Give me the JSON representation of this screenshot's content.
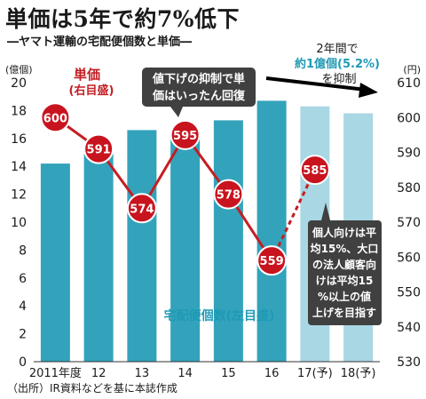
{
  "header": {
    "title": "単価は5年で約7%低下",
    "subtitle": "―ヤマト運輸の宅配便個数と単価―"
  },
  "footer": {
    "source": "（出所）IR資料などを基に本誌作成"
  },
  "colors": {
    "bar_actual": "#33a3bb",
    "bar_forecast": "#a9d7e4",
    "price_line": "#c41e24",
    "price_marker": "#c8141e",
    "callout_bg": "#404040",
    "axis_text": "#1a1a1a",
    "red_label": "#c41e24",
    "blue_label": "#1f9ab5"
  },
  "chart_data": {
    "type": "bar",
    "categories": [
      "2011年度",
      "12",
      "13",
      "14",
      "15",
      "16",
      "17(予)",
      "18(予)"
    ],
    "series": [
      {
        "name": "宅配便個数(左目盛)",
        "axis": "left",
        "values": [
          14.2,
          14.9,
          16.6,
          16.2,
          17.3,
          18.7,
          18.3,
          17.8
        ],
        "forecast": [
          false,
          false,
          false,
          false,
          false,
          false,
          true,
          true
        ]
      },
      {
        "name": "単価(右目盛)",
        "axis": "right",
        "values": [
          600,
          591,
          574,
          595,
          578,
          559,
          585,
          null
        ],
        "labels": [
          "600",
          "591",
          "574",
          "595",
          "578",
          "559",
          "585",
          ""
        ],
        "projected_from_index": 5
      }
    ],
    "left_axis": {
      "unit": "(億個)",
      "ylim": [
        0,
        20
      ],
      "ticks": [
        0,
        2,
        4,
        6,
        8,
        10,
        12,
        14,
        16,
        18,
        20
      ]
    },
    "right_axis": {
      "unit": "(円)",
      "ylim": [
        530,
        610
      ],
      "ticks": [
        530,
        540,
        550,
        560,
        570,
        580,
        590,
        600,
        610
      ]
    },
    "legend_labels": {
      "price_line": "単価",
      "price_axis": "(右目盛)",
      "bars": "宅配便個数(左目盛)"
    },
    "annotations": {
      "callout_top": [
        "値下げの抑制で単",
        "価はいったん回復"
      ],
      "arrow_note_line1": "2年間で",
      "arrow_note_line2": "約1億個(5.2%)",
      "arrow_note_line3": "を抑制",
      "callout_right": [
        "個人向けは平",
        "均15%、大口",
        "の法人顧客向",
        "けは平均15",
        "%以上の値",
        "上げを目指す"
      ]
    },
    "grid": false
  }
}
